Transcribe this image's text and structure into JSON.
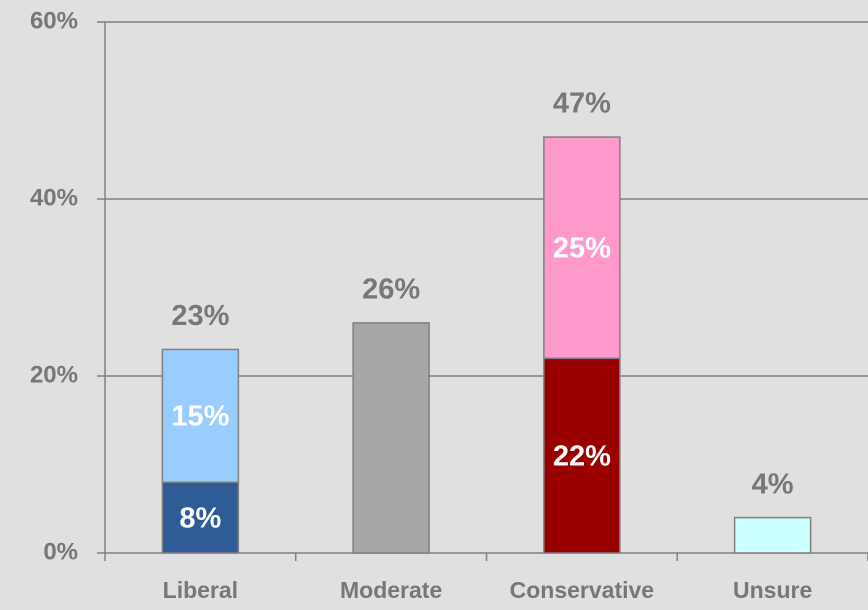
{
  "chart_data": {
    "type": "bar",
    "stacked": true,
    "categories": [
      "Liberal",
      "Moderate",
      "Conservative",
      "Unsure"
    ],
    "series": [
      {
        "values": [
          8,
          26,
          22,
          4
        ],
        "colors": [
          "#2f5b96",
          "#a6a6a6",
          "#990000",
          "#ccffff"
        ],
        "value_labels": [
          "8%",
          null,
          "22%",
          null
        ]
      },
      {
        "values": [
          15,
          null,
          25,
          null
        ],
        "colors": [
          "#99ccff",
          null,
          "#ff99cc",
          null
        ],
        "value_labels": [
          "15%",
          null,
          "25%",
          null
        ]
      }
    ],
    "totals": [
      23,
      26,
      47,
      4
    ],
    "total_labels": [
      "23%",
      "26%",
      "47%",
      "4%"
    ],
    "ylim": [
      0,
      60
    ],
    "yticks": [
      {
        "value": 0,
        "label": "0%"
      },
      {
        "value": 20,
        "label": "20%"
      },
      {
        "value": 40,
        "label": "40%"
      },
      {
        "value": 60,
        "label": "60%"
      }
    ],
    "grid": true
  }
}
